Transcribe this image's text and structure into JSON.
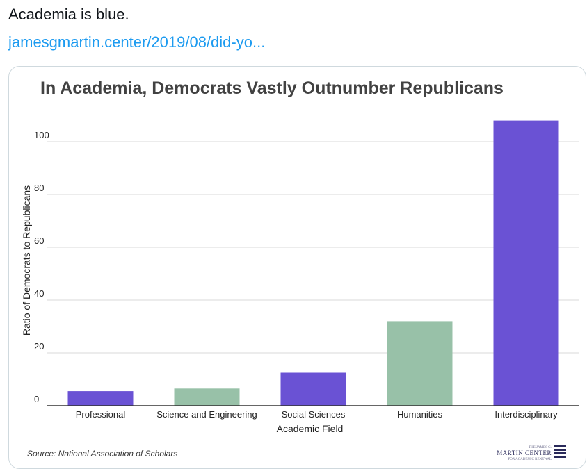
{
  "tweet": {
    "text": "Academia is blue.",
    "link": "jamesgmartin.center/2019/08/did-yo..."
  },
  "colors": {
    "purple": "#6a52d4",
    "green": "#98c1a8",
    "grid": "#d9d9d9",
    "axis": "#333333"
  },
  "chart_data": {
    "type": "bar",
    "title": "In Academia, Democrats Vastly Outnumber Republicans",
    "xlabel": "Academic Field",
    "ylabel": "Ratio of Democrats to Republicans",
    "ylim": [
      0,
      110
    ],
    "yticks": [
      0,
      20,
      40,
      60,
      80,
      100
    ],
    "grid": true,
    "categories": [
      "Professional",
      "Science and Engineering",
      "Social Sciences",
      "Humanities",
      "Interdisciplinary"
    ],
    "values": [
      5.5,
      6.5,
      12.5,
      32,
      108
    ],
    "bar_colors": [
      "purple",
      "green",
      "purple",
      "green",
      "purple"
    ],
    "source": "Source: National Association of Scholars"
  },
  "logo": {
    "top": "THE JAMES G.",
    "main": "MARTIN CENTER",
    "bottom": "FOR ACADEMIC RENEWAL"
  }
}
